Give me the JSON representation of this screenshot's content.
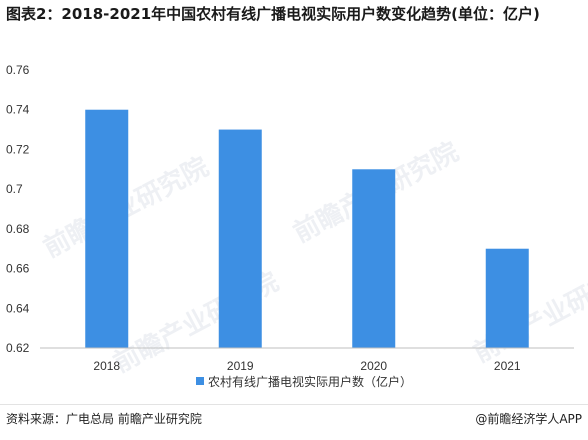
{
  "title": "图表2：2018-2021年中国农村有线广播电视实际用户数变化趋势(单位：亿户)",
  "chart_data": {
    "type": "bar",
    "categories": [
      "2018",
      "2019",
      "2020",
      "2021"
    ],
    "series": [
      {
        "name": "农村有线广播电视实际用户数（亿户）",
        "values": [
          0.74,
          0.73,
          0.71,
          0.67
        ]
      }
    ],
    "y_ticks": [
      "0.62",
      "0.64",
      "0.66",
      "0.68",
      "0.7",
      "0.72",
      "0.74",
      "0.76"
    ],
    "ylim": [
      0.62,
      0.76
    ],
    "grid": false,
    "legend_position": "bottom",
    "bar_color": "#3d8fe3"
  },
  "watermark_text": "前瞻产业研究院",
  "footer": {
    "source": "资料来源：广电总局 前瞻产业研究院",
    "brand_icon": "@",
    "brand": "前瞻经济学人APP"
  }
}
